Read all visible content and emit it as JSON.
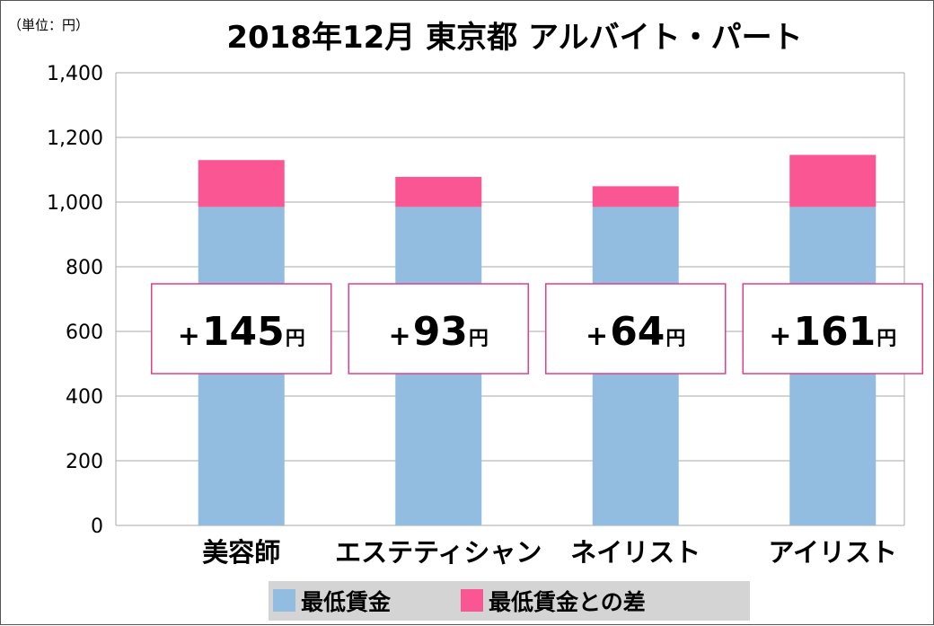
{
  "unit_label": "（単位：円）",
  "colors": {
    "base": "#92bde0",
    "diff": "#fa5693",
    "annotation_border": "#e23f8a"
  },
  "chart_data": {
    "type": "bar",
    "stacked": true,
    "title": "2018年12月 東京都 アルバイト・パート",
    "categories": [
      "美容師",
      "エステティシャン",
      "ネイリスト",
      "アイリスト"
    ],
    "series": [
      {
        "name": "最低賃金",
        "values": [
          985,
          985,
          985,
          985
        ]
      },
      {
        "name": "最低賃金との差",
        "values": [
          145,
          93,
          64,
          161
        ]
      }
    ],
    "annotations": [
      {
        "sign": "+",
        "value": "145",
        "unit": "円"
      },
      {
        "sign": "+",
        "value": "93",
        "unit": "円"
      },
      {
        "sign": "+",
        "value": "64",
        "unit": "円"
      },
      {
        "sign": "+",
        "value": "161",
        "unit": "円"
      }
    ],
    "yticks": [
      "0",
      "200",
      "400",
      "600",
      "800",
      "1,000",
      "1,200",
      "1,400"
    ],
    "ylim": [
      0,
      1400
    ],
    "grid": true,
    "legend_position": "bottom"
  }
}
